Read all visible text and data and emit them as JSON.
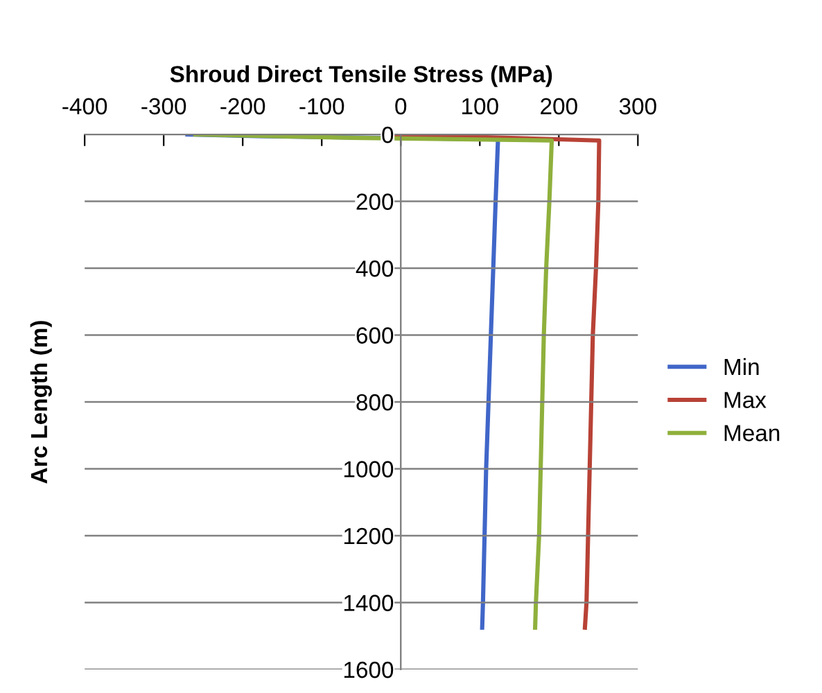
{
  "chart_data": {
    "type": "line",
    "xlabel": "Shroud Direct Tensile Stress (MPa)",
    "ylabel": "Arc Length (m)",
    "xlim": [
      -400,
      300
    ],
    "xticks": [
      -400,
      -300,
      -200,
      -100,
      0,
      100,
      200,
      300
    ],
    "ylim": [
      1600,
      0
    ],
    "yticks": [
      0,
      200,
      400,
      600,
      800,
      1000,
      1200,
      1400,
      1600
    ],
    "grid": "y",
    "legend": "right",
    "marker": "none",
    "line_style": "solid",
    "series": [
      {
        "name": "Min",
        "color": "#4066c8",
        "x": [
          -270,
          -180,
          123,
          120,
          117,
          114,
          111,
          108,
          106,
          104,
          103
        ],
        "values": [
          0,
          5,
          15,
          200,
          400,
          600,
          800,
          1000,
          1200,
          1400,
          1475
        ]
      },
      {
        "name": "Max",
        "color": "#b84236",
        "x": [
          -15,
          251,
          250,
          247,
          243,
          241,
          239,
          237,
          235,
          233
        ],
        "values": [
          0,
          18,
          200,
          400,
          600,
          800,
          1000,
          1200,
          1400,
          1475
        ]
      },
      {
        "name": "Mean",
        "color": "#8fb03c",
        "x": [
          -260,
          -60,
          191,
          188,
          184,
          181,
          179,
          177,
          175,
          171,
          170
        ],
        "values": [
          0,
          10,
          18,
          200,
          400,
          600,
          800,
          1000,
          1200,
          1400,
          1475
        ]
      }
    ]
  }
}
